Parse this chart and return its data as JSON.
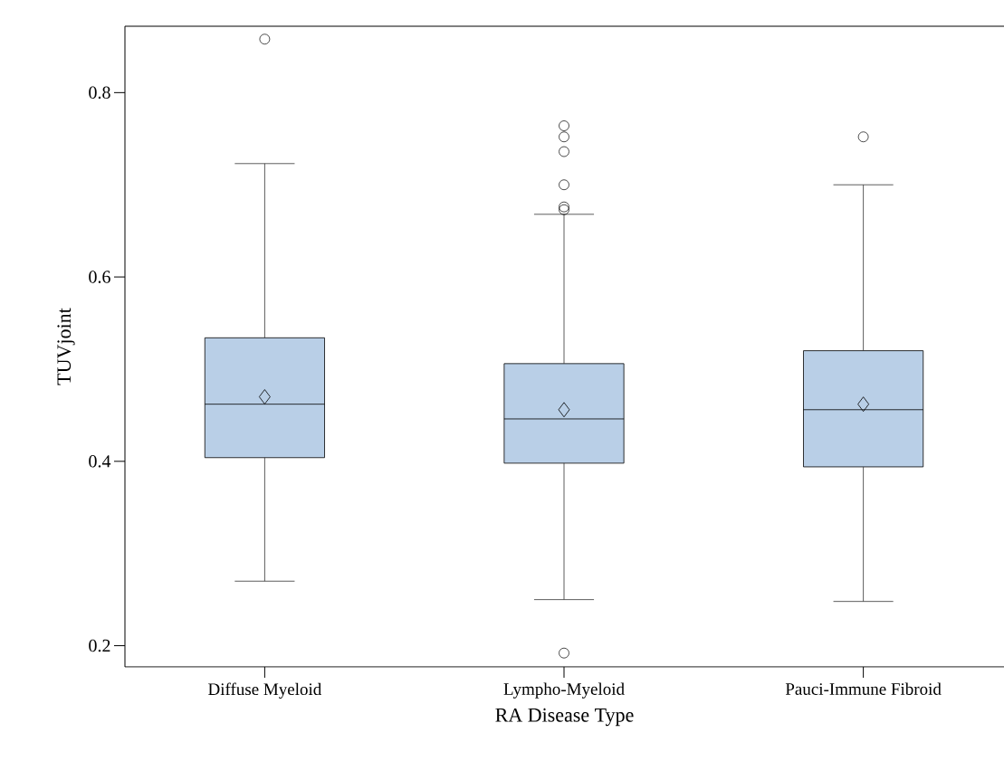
{
  "chart_data": {
    "type": "box",
    "xlabel": "RA Disease Type",
    "ylabel": "TUVjoint",
    "categories": [
      "Diffuse Myeloid",
      "Lympho-Myeloid",
      "Pauci-Immune Fibroid"
    ],
    "series": [
      {
        "color": "#b9cfe7",
        "boxes": [
          {
            "low": 0.27,
            "q1": 0.404,
            "median": 0.462,
            "q3": 0.534,
            "high": 0.723,
            "mean": 0.47,
            "outliers": [
              0.858
            ]
          },
          {
            "low": 0.25,
            "q1": 0.398,
            "median": 0.446,
            "q3": 0.506,
            "high": 0.668,
            "mean": 0.456,
            "outliers": [
              0.764,
              0.752,
              0.736,
              0.7,
              0.676,
              0.673,
              0.192
            ]
          },
          {
            "low": 0.248,
            "q1": 0.394,
            "median": 0.456,
            "q3": 0.52,
            "high": 0.7,
            "mean": 0.462,
            "outliers": [
              0.752
            ]
          }
        ]
      }
    ],
    "ylim": [
      0.177,
      0.872
    ],
    "yticks": [
      0.2,
      0.4,
      0.6,
      0.8
    ]
  }
}
